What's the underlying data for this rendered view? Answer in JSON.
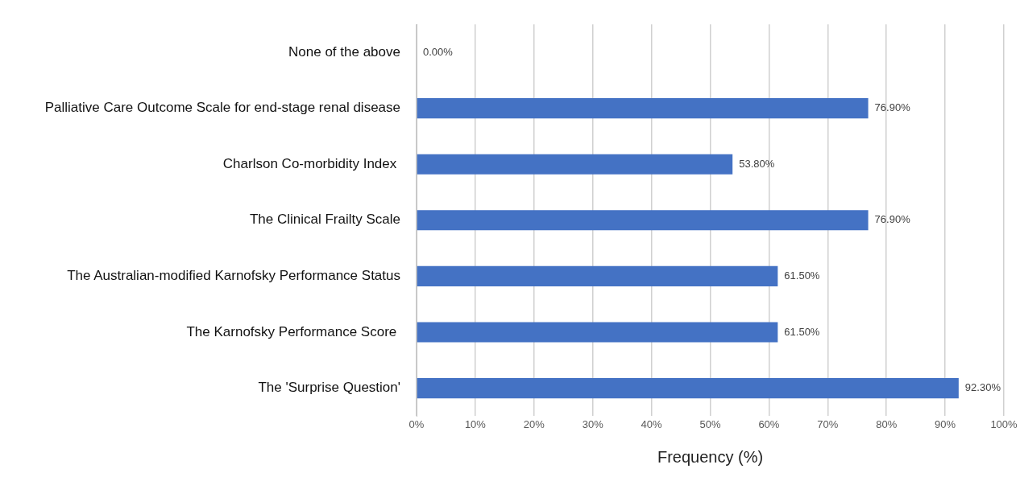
{
  "chart_data": {
    "type": "bar",
    "orientation": "horizontal",
    "xlabel": "Frequency (%)",
    "categories": [
      "None of the above",
      "Palliative Care Outcome Scale for end-stage renal disease",
      "Charlson Co-morbidity Index ",
      "The Clinical Frailty Scale",
      "The Australian-modified Karnofsky Performance Status",
      "The Karnofsky Performance Score ",
      "The 'Surprise Question'"
    ],
    "values": [
      0,
      76.9,
      53.8,
      76.9,
      61.5,
      61.5,
      92.3
    ],
    "value_labels": [
      "0.00%",
      "76.90%",
      "53.80%",
      "76.90%",
      "61.50%",
      "61.50%",
      "92.30%"
    ],
    "color": "#4472c4",
    "xlim": [
      0,
      100
    ],
    "xticks": [
      {
        "value": 0,
        "label": "0%"
      },
      {
        "value": 10,
        "label": "10%"
      },
      {
        "value": 20,
        "label": "20%"
      },
      {
        "value": 30,
        "label": "30%"
      },
      {
        "value": 40,
        "label": "40%"
      },
      {
        "value": 50,
        "label": "50%"
      },
      {
        "value": 60,
        "label": "60%"
      },
      {
        "value": 70,
        "label": "70%"
      },
      {
        "value": 80,
        "label": "80%"
      },
      {
        "value": 90,
        "label": "90%"
      },
      {
        "value": 100,
        "label": "100%"
      }
    ],
    "grid": "x",
    "legend": false
  }
}
